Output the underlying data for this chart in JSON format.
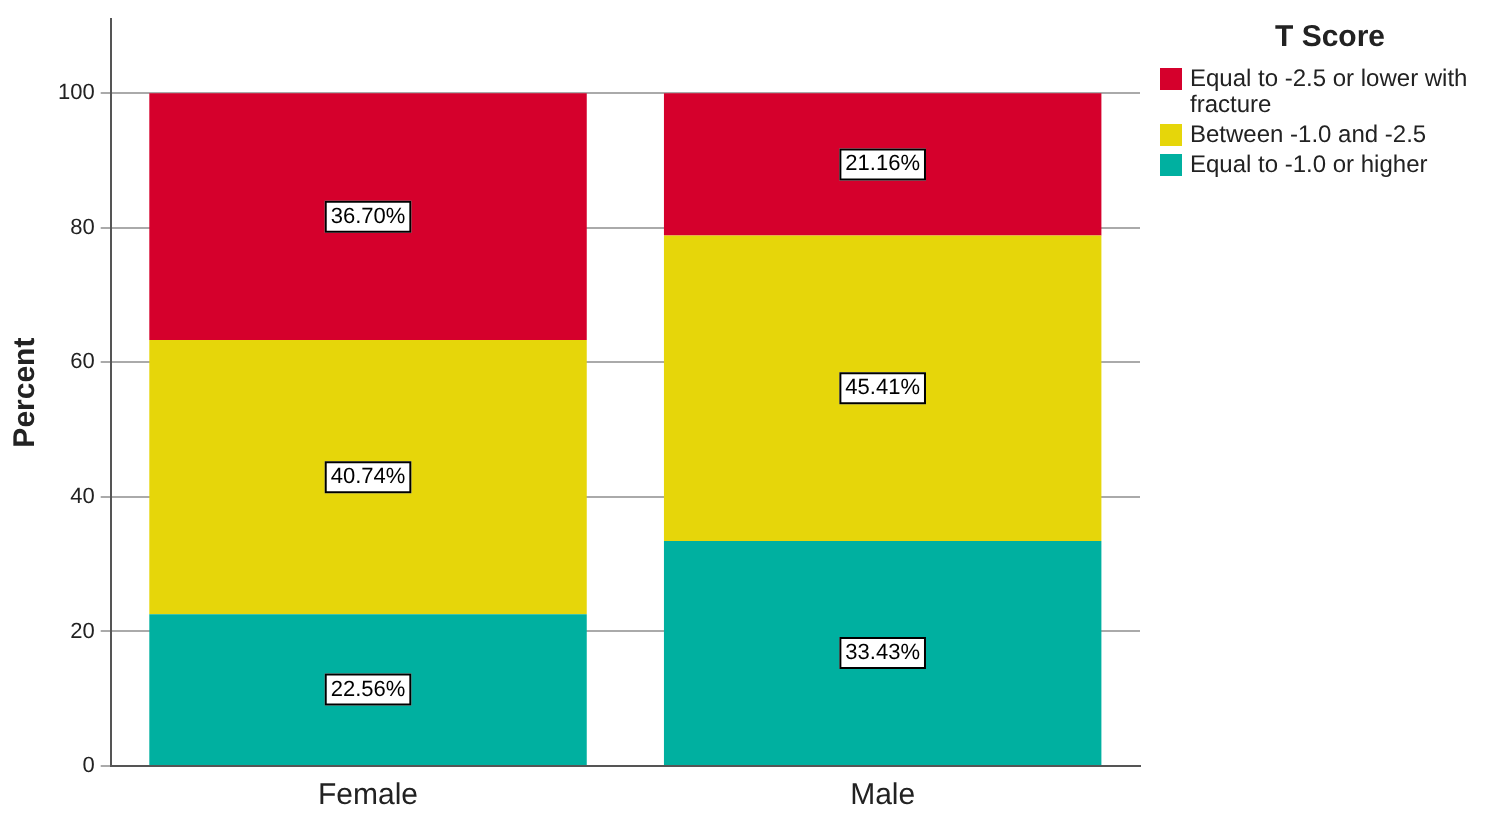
{
  "chart_data": {
    "type": "bar",
    "stacked": true,
    "ylabel": "Percent",
    "legend_title": "T Score",
    "categories": [
      "Female",
      "Male"
    ],
    "series": [
      {
        "name": "Equal to -1.0 or higher",
        "color": "#00b0a0",
        "values": [
          22.56,
          33.43
        ],
        "value_labels": [
          "22.56%",
          "33.43%"
        ]
      },
      {
        "name": "Between -1.0 and -2.5",
        "color": "#e6d60a",
        "values": [
          40.74,
          45.41
        ],
        "value_labels": [
          "40.74%",
          "45.41%"
        ]
      },
      {
        "name": "Equal to -2.5 or lower with fracture",
        "color": "#d5002c",
        "values": [
          36.7,
          21.16
        ],
        "value_labels": [
          "36.70%",
          "21.16%"
        ]
      }
    ],
    "ylim": [
      0,
      111
    ],
    "yticks": [
      0,
      20,
      40,
      60,
      80,
      100
    ],
    "grid": "y",
    "legend": "right"
  }
}
